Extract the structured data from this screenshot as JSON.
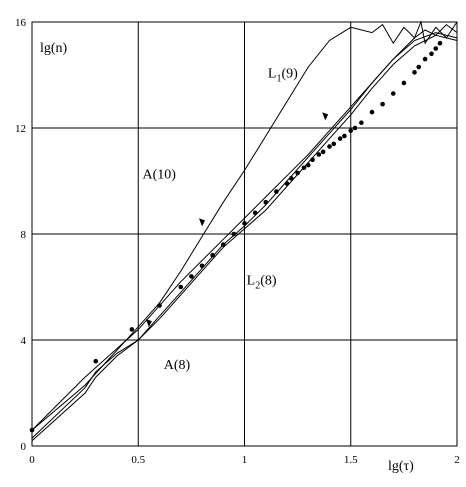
{
  "chart_data": {
    "type": "line",
    "title": "",
    "xlabel": "lg(τ)",
    "ylabel": "lg(n)",
    "xlim": [
      0,
      2
    ],
    "ylim": [
      0,
      16
    ],
    "grid": true,
    "x_ticks": [
      0,
      0.5,
      1,
      1.5,
      2
    ],
    "x_tick_labels": [
      "0",
      "0.5",
      "1",
      "1.5",
      "2"
    ],
    "y_ticks": [
      0,
      4,
      8,
      12,
      16
    ],
    "y_tick_labels": [
      "0",
      "4",
      "8",
      "12",
      "16"
    ],
    "series": [
      {
        "id": "A10",
        "x": [
          0,
          0.25,
          0.5,
          0.6,
          0.7,
          0.8,
          0.9,
          1.0,
          1.1,
          1.2,
          1.3,
          1.4,
          1.5,
          1.6,
          1.65,
          1.7,
          1.75,
          1.8,
          1.83,
          1.85,
          1.9,
          1.95,
          2.0
        ],
        "y": [
          0.6,
          2.3,
          4.5,
          5.4,
          6.6,
          7.9,
          9.2,
          10.4,
          11.7,
          13.0,
          14.3,
          15.3,
          15.8,
          15.6,
          15.9,
          15.2,
          15.8,
          15.4,
          16.0,
          15.2,
          15.8,
          15.4,
          16.0
        ]
      },
      {
        "id": "L1-9",
        "x": [
          0,
          0.25,
          0.5,
          0.7,
          0.9,
          1.0,
          1.1,
          1.2,
          1.3,
          1.4,
          1.5,
          1.6,
          1.7,
          1.8,
          1.85,
          1.9,
          1.95,
          2.0
        ],
        "y": [
          0.6,
          2.6,
          4.4,
          6.2,
          7.8,
          8.6,
          9.4,
          10.2,
          11.0,
          11.9,
          12.8,
          13.7,
          14.6,
          15.4,
          15.7,
          15.5,
          15.9,
          15.6
        ]
      },
      {
        "id": "A8",
        "x": [
          0,
          0.25,
          0.3,
          0.4,
          0.5,
          0.6,
          0.7,
          0.8,
          0.9,
          1.0,
          1.1,
          1.2,
          1.3,
          1.4,
          1.5,
          1.6,
          1.7,
          1.8,
          1.9,
          2.0
        ],
        "y": [
          0.3,
          2.2,
          2.8,
          3.5,
          4.0,
          4.9,
          5.8,
          6.7,
          7.6,
          8.3,
          9.1,
          10.0,
          10.9,
          11.8,
          12.7,
          13.7,
          14.6,
          15.3,
          15.6,
          15.4
        ]
      },
      {
        "id": "L2-8",
        "x": [
          0,
          0.25,
          0.3,
          0.4,
          0.5,
          0.6,
          0.7,
          0.8,
          0.9,
          1.0,
          1.1,
          1.2,
          1.3,
          1.4,
          1.5,
          1.6,
          1.7,
          1.8,
          1.9,
          2.0
        ],
        "y": [
          0.2,
          2.0,
          2.6,
          3.4,
          4.0,
          4.8,
          5.7,
          6.6,
          7.5,
          8.2,
          8.9,
          9.8,
          10.7,
          11.6,
          12.5,
          13.5,
          14.4,
          15.1,
          15.5,
          15.3
        ]
      },
      {
        "id": "points",
        "x": [
          0,
          0.3,
          0.47,
          0.6,
          0.7,
          0.75,
          0.8,
          0.85,
          0.9,
          0.95,
          1.0,
          1.05,
          1.1,
          1.15,
          1.2,
          1.22,
          1.25,
          1.28,
          1.3,
          1.32,
          1.35,
          1.37,
          1.4,
          1.42,
          1.45,
          1.47,
          1.5,
          1.52,
          1.55,
          1.6,
          1.65,
          1.7,
          1.75,
          1.8,
          1.82,
          1.85,
          1.88,
          1.9,
          1.92
        ],
        "y": [
          0.6,
          3.2,
          4.4,
          5.3,
          6.0,
          6.4,
          6.8,
          7.2,
          7.6,
          8.0,
          8.4,
          8.8,
          9.2,
          9.6,
          9.9,
          10.1,
          10.3,
          10.5,
          10.6,
          10.8,
          11.0,
          11.1,
          11.3,
          11.4,
          11.6,
          11.7,
          11.9,
          12.0,
          12.2,
          12.6,
          12.9,
          13.3,
          13.7,
          14.1,
          14.3,
          14.6,
          14.8,
          15.0,
          15.2
        ]
      }
    ],
    "annotations": [
      {
        "text": "A(10)",
        "x": 0.52,
        "y": 10.1
      },
      {
        "text": "L",
        "sub": "1",
        "after": "(9)",
        "x": 1.11,
        "y": 13.9
      },
      {
        "text": "L",
        "sub": "2",
        "after": "(8)",
        "x": 1.01,
        "y": 6.1
      },
      {
        "text": "A(8)",
        "x": 0.62,
        "y": 2.9
      }
    ],
    "arrows": [
      {
        "x": 0.8,
        "y": 8.4
      },
      {
        "x": 1.38,
        "y": 12.4
      },
      {
        "x": 0.55,
        "y": 4.6
      }
    ]
  }
}
